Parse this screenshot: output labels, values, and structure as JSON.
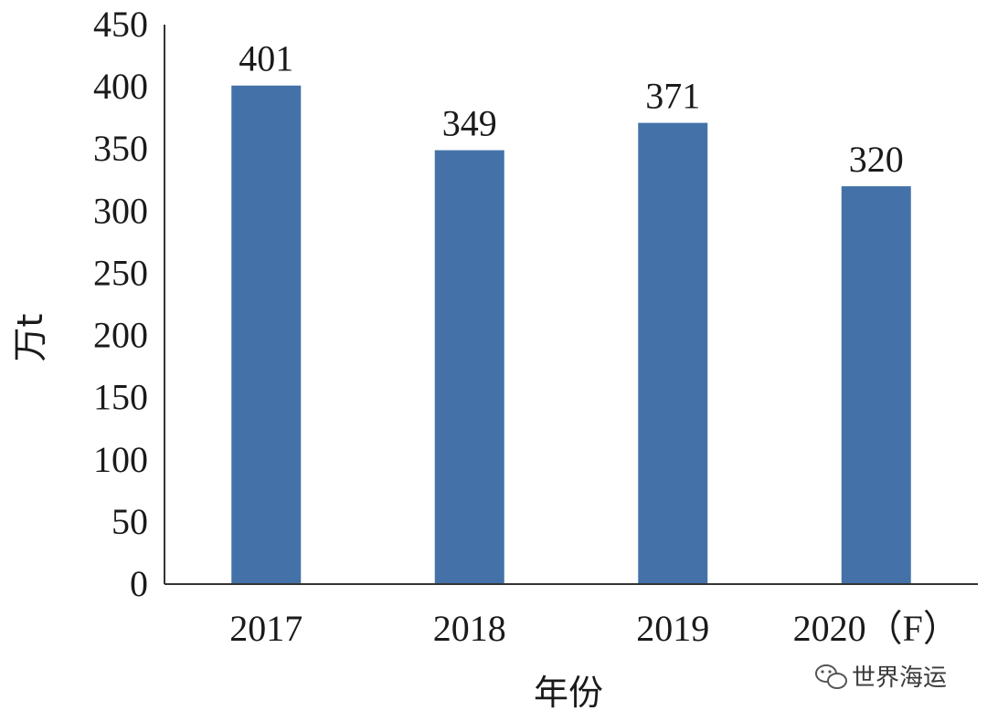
{
  "chart_data": {
    "type": "bar",
    "categories": [
      "2017",
      "2018",
      "2019",
      "2020（F）"
    ],
    "values": [
      401,
      349,
      371,
      320
    ],
    "data_labels": [
      "401",
      "349",
      "371",
      "320"
    ],
    "title": "",
    "xlabel": "年份",
    "ylabel": "万t",
    "ylim": [
      0,
      450
    ],
    "yticks": [
      0,
      50,
      100,
      150,
      200,
      250,
      300,
      350,
      400,
      450
    ],
    "grid": false,
    "legend": "none",
    "bar_color": "#4472a8",
    "axis_color": "#333333"
  },
  "watermark": {
    "text": "世界海运",
    "icon": "wechat-icon"
  }
}
